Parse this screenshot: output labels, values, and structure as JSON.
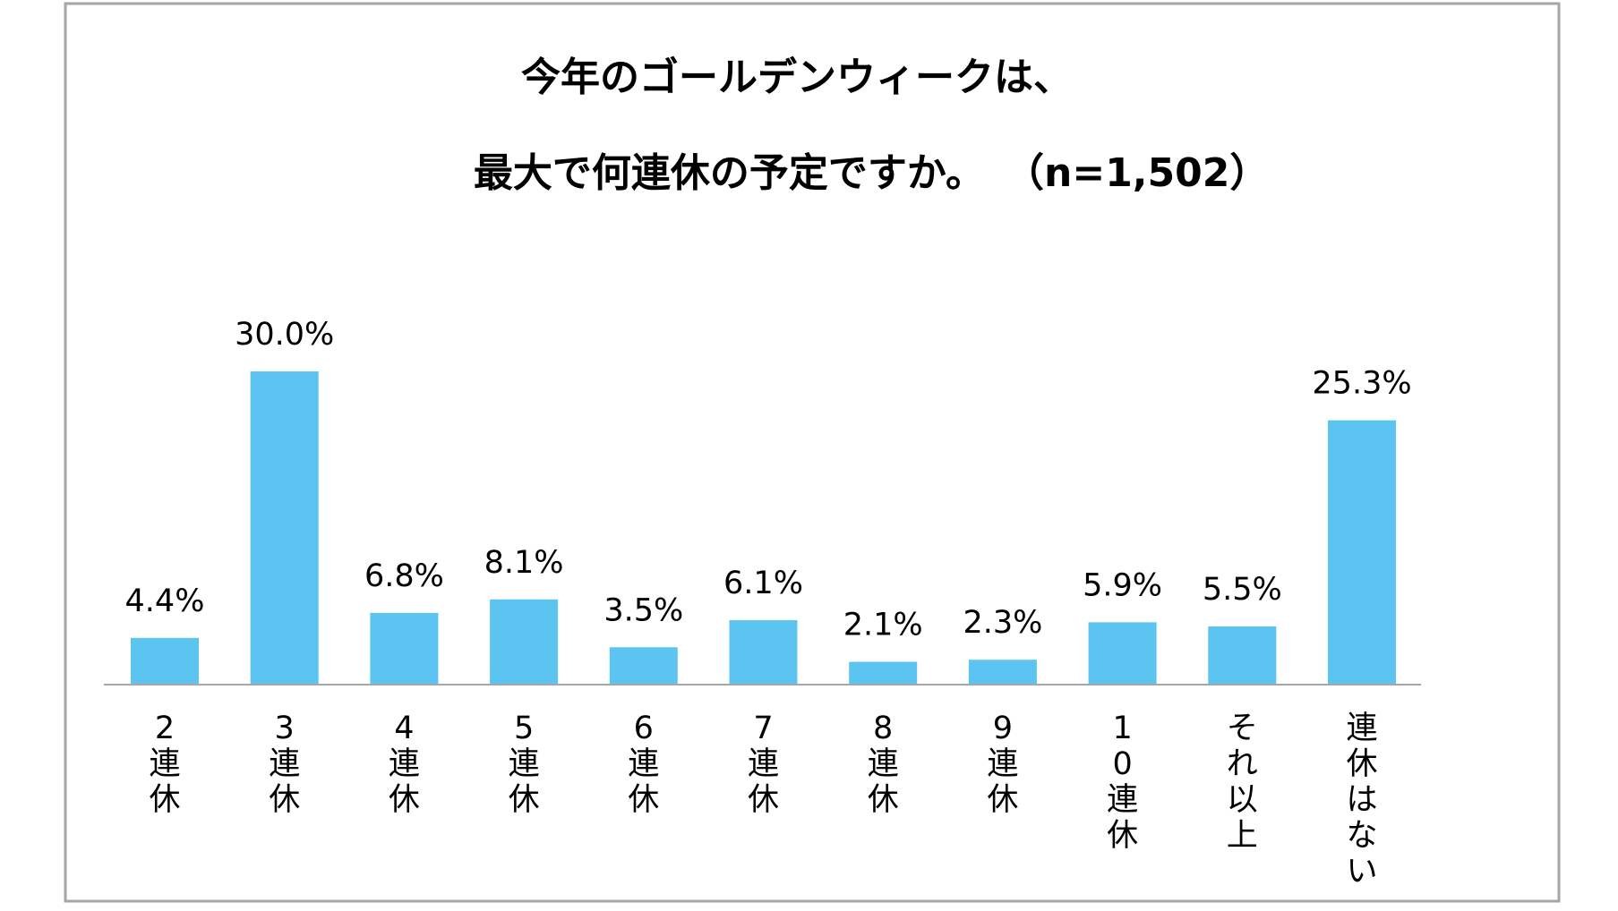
{
  "chart_data": {
    "type": "bar",
    "title": "今年のゴールデンウィークは、",
    "subtitle": "最大で何連休の予定ですか。",
    "sample_note": "（n=1,502）",
    "categories": [
      "2連休",
      "3連休",
      "4連休",
      "5連休",
      "6連休",
      "7連休",
      "8連休",
      "9連休",
      "10連休",
      "それ以上",
      "連休はない"
    ],
    "values": [
      4.4,
      30.0,
      6.8,
      8.1,
      3.5,
      6.1,
      2.1,
      2.3,
      5.9,
      5.5,
      25.3
    ],
    "value_labels": [
      "4.4%",
      "30.0%",
      "6.8%",
      "8.1%",
      "3.5%",
      "6.1%",
      "2.1%",
      "2.3%",
      "5.9%",
      "5.5%",
      "25.3%"
    ],
    "unit": "%",
    "xlabel": "",
    "ylabel": "",
    "ylim": [
      0,
      30
    ],
    "grid": false,
    "legend": "none",
    "bar_color": "#5BC4F1",
    "axis_color": "#A6A6A6",
    "border_color": "#A6A6A6"
  }
}
